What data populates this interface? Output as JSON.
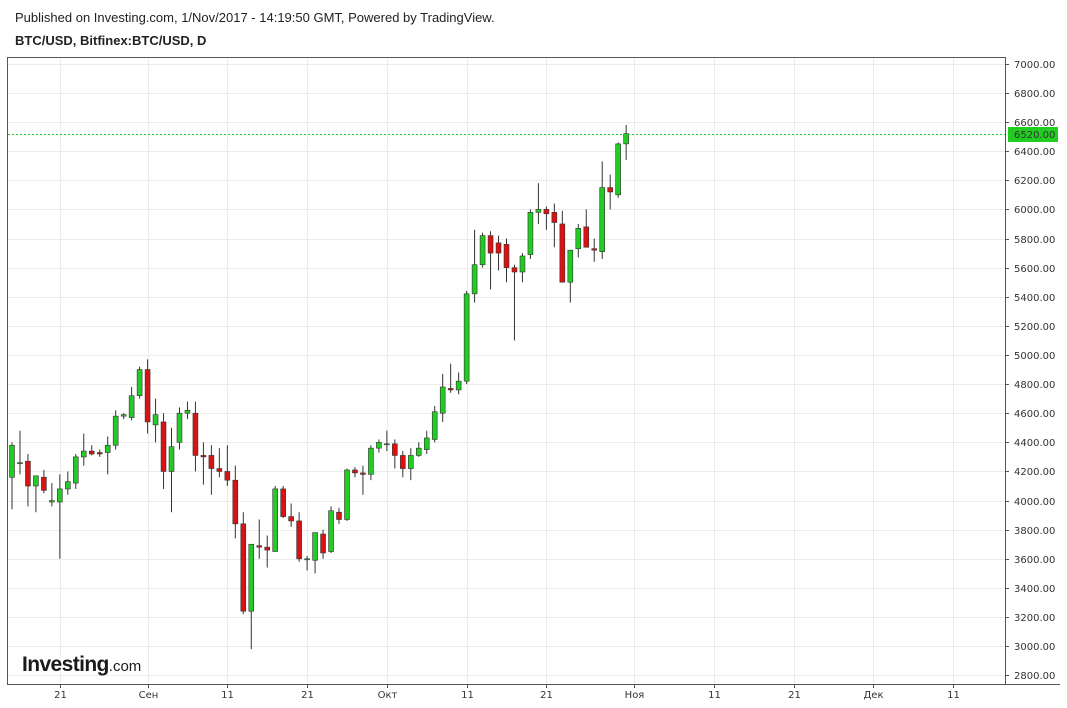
{
  "header": {
    "published": "Published on Investing.com, 1/Nov/2017 - 14:19:50 GMT, Powered by TradingView.",
    "symbol": "BTC/USD, Bitfinex:BTC/USD, D"
  },
  "logo": {
    "main": "Investing",
    "domain": ".com"
  },
  "colors": {
    "up": "#22cc22",
    "down": "#dd1111",
    "last_price": "#22cc22",
    "grid": "#ececec"
  },
  "chart_data": {
    "type": "candlestick",
    "title": "BTC/USD, Bitfinex:BTC/USD, D",
    "ylim": [
      2740,
      7040
    ],
    "y_ticks": [
      2800,
      3000,
      3200,
      3400,
      3600,
      3800,
      4000,
      4200,
      4400,
      4600,
      4800,
      5000,
      5200,
      5400,
      5600,
      5800,
      6000,
      6200,
      6400,
      6600,
      6800,
      7000
    ],
    "x_range": [
      "2017-08-15",
      "2017-12-18"
    ],
    "x_ticks": [
      {
        "date": "2017-08-21",
        "label": "21"
      },
      {
        "date": "2017-09-01",
        "label": "Сен"
      },
      {
        "date": "2017-09-11",
        "label": "11"
      },
      {
        "date": "2017-09-21",
        "label": "21"
      },
      {
        "date": "2017-10-01",
        "label": "Окт"
      },
      {
        "date": "2017-10-11",
        "label": "11"
      },
      {
        "date": "2017-10-21",
        "label": "21"
      },
      {
        "date": "2017-11-01",
        "label": "Ноя"
      },
      {
        "date": "2017-11-11",
        "label": "11"
      },
      {
        "date": "2017-11-21",
        "label": "21"
      },
      {
        "date": "2017-12-01",
        "label": "Дек"
      },
      {
        "date": "2017-12-11",
        "label": "11"
      }
    ],
    "last_price": 6520,
    "last_price_label": "6520.00",
    "grid": true,
    "candles": [
      {
        "date": "2017-08-15",
        "o": 4160,
        "h": 4400,
        "l": 3940,
        "c": 4380
      },
      {
        "date": "2017-08-16",
        "o": 4260,
        "h": 4480,
        "l": 4180,
        "c": 4260
      },
      {
        "date": "2017-08-17",
        "o": 4270,
        "h": 4320,
        "l": 3960,
        "c": 4100
      },
      {
        "date": "2017-08-18",
        "o": 4100,
        "h": 4170,
        "l": 3920,
        "c": 4170
      },
      {
        "date": "2017-08-19",
        "o": 4160,
        "h": 4210,
        "l": 4050,
        "c": 4070
      },
      {
        "date": "2017-08-20",
        "o": 3990,
        "h": 4120,
        "l": 3960,
        "c": 4000
      },
      {
        "date": "2017-08-21",
        "o": 3990,
        "h": 4180,
        "l": 3600,
        "c": 4080
      },
      {
        "date": "2017-08-22",
        "o": 4080,
        "h": 4200,
        "l": 4040,
        "c": 4130
      },
      {
        "date": "2017-08-23",
        "o": 4120,
        "h": 4320,
        "l": 4080,
        "c": 4300
      },
      {
        "date": "2017-08-24",
        "o": 4300,
        "h": 4460,
        "l": 4240,
        "c": 4340
      },
      {
        "date": "2017-08-25",
        "o": 4340,
        "h": 4380,
        "l": 4310,
        "c": 4320
      },
      {
        "date": "2017-08-26",
        "o": 4330,
        "h": 4350,
        "l": 4300,
        "c": 4320
      },
      {
        "date": "2017-08-27",
        "o": 4330,
        "h": 4440,
        "l": 4180,
        "c": 4380
      },
      {
        "date": "2017-08-28",
        "o": 4380,
        "h": 4620,
        "l": 4350,
        "c": 4580
      },
      {
        "date": "2017-08-29",
        "o": 4580,
        "h": 4600,
        "l": 4560,
        "c": 4590
      },
      {
        "date": "2017-08-30",
        "o": 4570,
        "h": 4780,
        "l": 4550,
        "c": 4720
      },
      {
        "date": "2017-08-31",
        "o": 4720,
        "h": 4920,
        "l": 4700,
        "c": 4900
      },
      {
        "date": "2017-09-01",
        "o": 4900,
        "h": 4970,
        "l": 4460,
        "c": 4540
      },
      {
        "date": "2017-09-02",
        "o": 4520,
        "h": 4700,
        "l": 4400,
        "c": 4590
      },
      {
        "date": "2017-09-03",
        "o": 4540,
        "h": 4600,
        "l": 4080,
        "c": 4200
      },
      {
        "date": "2017-09-04",
        "o": 4200,
        "h": 4500,
        "l": 3920,
        "c": 4370
      },
      {
        "date": "2017-09-05",
        "o": 4400,
        "h": 4640,
        "l": 4350,
        "c": 4600
      },
      {
        "date": "2017-09-06",
        "o": 4600,
        "h": 4680,
        "l": 4560,
        "c": 4620
      },
      {
        "date": "2017-09-07",
        "o": 4600,
        "h": 4680,
        "l": 4200,
        "c": 4310
      },
      {
        "date": "2017-09-08",
        "o": 4310,
        "h": 4400,
        "l": 4110,
        "c": 4300
      },
      {
        "date": "2017-09-09",
        "o": 4310,
        "h": 4380,
        "l": 4040,
        "c": 4220
      },
      {
        "date": "2017-09-10",
        "o": 4220,
        "h": 4360,
        "l": 4160,
        "c": 4200
      },
      {
        "date": "2017-09-11",
        "o": 4200,
        "h": 4380,
        "l": 4100,
        "c": 4140
      },
      {
        "date": "2017-09-12",
        "o": 4140,
        "h": 4240,
        "l": 3740,
        "c": 3840
      },
      {
        "date": "2017-09-13",
        "o": 3840,
        "h": 3920,
        "l": 3220,
        "c": 3240
      },
      {
        "date": "2017-09-14",
        "o": 3240,
        "h": 3700,
        "l": 2980,
        "c": 3700
      },
      {
        "date": "2017-09-15",
        "o": 3690,
        "h": 3870,
        "l": 3600,
        "c": 3680
      },
      {
        "date": "2017-09-16",
        "o": 3680,
        "h": 3760,
        "l": 3540,
        "c": 3660
      },
      {
        "date": "2017-09-17",
        "o": 3650,
        "h": 4100,
        "l": 3660,
        "c": 4080
      },
      {
        "date": "2017-09-18",
        "o": 4080,
        "h": 4100,
        "l": 3880,
        "c": 3890
      },
      {
        "date": "2017-09-19",
        "o": 3890,
        "h": 3980,
        "l": 3820,
        "c": 3860
      },
      {
        "date": "2017-09-20",
        "o": 3860,
        "h": 3920,
        "l": 3580,
        "c": 3600
      },
      {
        "date": "2017-09-21",
        "o": 3600,
        "h": 3620,
        "l": 3520,
        "c": 3600
      },
      {
        "date": "2017-09-22",
        "o": 3590,
        "h": 3780,
        "l": 3500,
        "c": 3780
      },
      {
        "date": "2017-09-23",
        "o": 3770,
        "h": 3800,
        "l": 3600,
        "c": 3640
      },
      {
        "date": "2017-09-24",
        "o": 3650,
        "h": 3960,
        "l": 3640,
        "c": 3930
      },
      {
        "date": "2017-09-25",
        "o": 3920,
        "h": 3950,
        "l": 3840,
        "c": 3870
      },
      {
        "date": "2017-09-26",
        "o": 3870,
        "h": 4220,
        "l": 3860,
        "c": 4210
      },
      {
        "date": "2017-09-27",
        "o": 4210,
        "h": 4230,
        "l": 4160,
        "c": 4190
      },
      {
        "date": "2017-09-28",
        "o": 4190,
        "h": 4240,
        "l": 4040,
        "c": 4180
      },
      {
        "date": "2017-09-29",
        "o": 4180,
        "h": 4380,
        "l": 4140,
        "c": 4360
      },
      {
        "date": "2017-09-30",
        "o": 4360,
        "h": 4420,
        "l": 4330,
        "c": 4400
      },
      {
        "date": "2017-10-01",
        "o": 4390,
        "h": 4480,
        "l": 4340,
        "c": 4390
      },
      {
        "date": "2017-10-02",
        "o": 4390,
        "h": 4420,
        "l": 4220,
        "c": 4310
      },
      {
        "date": "2017-10-03",
        "o": 4310,
        "h": 4340,
        "l": 4160,
        "c": 4220
      },
      {
        "date": "2017-10-04",
        "o": 4220,
        "h": 4360,
        "l": 4140,
        "c": 4310
      },
      {
        "date": "2017-10-05",
        "o": 4310,
        "h": 4400,
        "l": 4300,
        "c": 4360
      },
      {
        "date": "2017-10-06",
        "o": 4350,
        "h": 4480,
        "l": 4320,
        "c": 4430
      },
      {
        "date": "2017-10-07",
        "o": 4420,
        "h": 4650,
        "l": 4400,
        "c": 4610
      },
      {
        "date": "2017-10-08",
        "o": 4600,
        "h": 4870,
        "l": 4540,
        "c": 4780
      },
      {
        "date": "2017-10-09",
        "o": 4770,
        "h": 4940,
        "l": 4740,
        "c": 4760
      },
      {
        "date": "2017-10-10",
        "o": 4760,
        "h": 4880,
        "l": 4730,
        "c": 4820
      },
      {
        "date": "2017-10-11",
        "o": 4820,
        "h": 5440,
        "l": 4800,
        "c": 5420
      },
      {
        "date": "2017-10-12",
        "o": 5420,
        "h": 5860,
        "l": 5360,
        "c": 5620
      },
      {
        "date": "2017-10-13",
        "o": 5620,
        "h": 5840,
        "l": 5600,
        "c": 5820
      },
      {
        "date": "2017-10-14",
        "o": 5820,
        "h": 5850,
        "l": 5450,
        "c": 5700
      },
      {
        "date": "2017-10-15",
        "o": 5770,
        "h": 5820,
        "l": 5580,
        "c": 5700
      },
      {
        "date": "2017-10-16",
        "o": 5760,
        "h": 5800,
        "l": 5500,
        "c": 5600
      },
      {
        "date": "2017-10-17",
        "o": 5600,
        "h": 5620,
        "l": 5100,
        "c": 5570
      },
      {
        "date": "2017-10-18",
        "o": 5570,
        "h": 5700,
        "l": 5500,
        "c": 5680
      },
      {
        "date": "2017-10-19",
        "o": 5690,
        "h": 6000,
        "l": 5660,
        "c": 5980
      },
      {
        "date": "2017-10-20",
        "o": 5980,
        "h": 6180,
        "l": 5900,
        "c": 6000
      },
      {
        "date": "2017-10-21",
        "o": 6000,
        "h": 6020,
        "l": 5860,
        "c": 5970
      },
      {
        "date": "2017-10-22",
        "o": 5980,
        "h": 6040,
        "l": 5740,
        "c": 5910
      },
      {
        "date": "2017-10-23",
        "o": 5900,
        "h": 5990,
        "l": 5500,
        "c": 5500
      },
      {
        "date": "2017-10-24",
        "o": 5500,
        "h": 5720,
        "l": 5360,
        "c": 5720
      },
      {
        "date": "2017-10-25",
        "o": 5730,
        "h": 5900,
        "l": 5670,
        "c": 5870
      },
      {
        "date": "2017-10-26",
        "o": 5880,
        "h": 6000,
        "l": 5740,
        "c": 5740
      },
      {
        "date": "2017-10-27",
        "o": 5730,
        "h": 5800,
        "l": 5640,
        "c": 5720
      },
      {
        "date": "2017-10-28",
        "o": 5710,
        "h": 6330,
        "l": 5660,
        "c": 6150
      },
      {
        "date": "2017-10-29",
        "o": 6150,
        "h": 6240,
        "l": 6000,
        "c": 6120
      },
      {
        "date": "2017-10-30",
        "o": 6100,
        "h": 6460,
        "l": 6080,
        "c": 6450
      },
      {
        "date": "2017-10-31",
        "o": 6450,
        "h": 6580,
        "l": 6340,
        "c": 6520
      }
    ]
  }
}
